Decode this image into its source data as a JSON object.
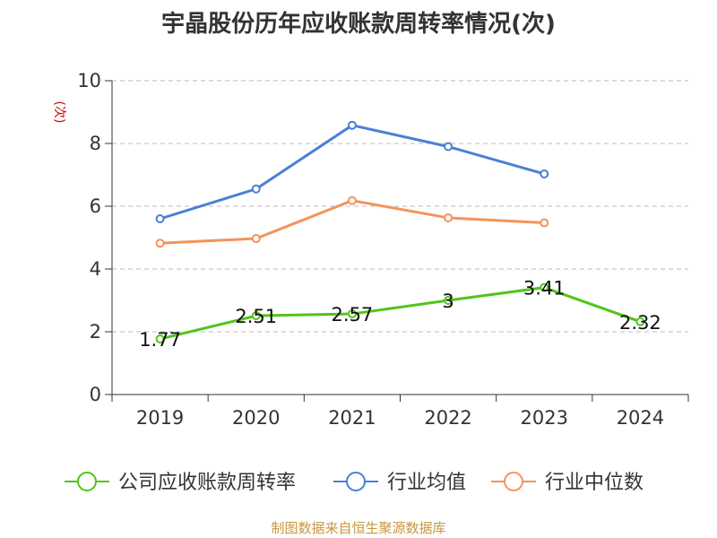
{
  "chart_data": {
    "type": "line",
    "title": "宇晶股份历年应收账款周转率情况(次)",
    "ylabel": "(次)",
    "xlabel": "",
    "categories": [
      "2019",
      "2020",
      "2021",
      "2022",
      "2023",
      "2024"
    ],
    "yticks": [
      "0",
      "2",
      "4",
      "6",
      "8",
      "10"
    ],
    "ylim": [
      0,
      10
    ],
    "grid": true,
    "legend_position": "bottom",
    "series": [
      {
        "name": "公司应收账款周转率",
        "color": "#52c41a",
        "values": [
          1.77,
          2.51,
          2.57,
          3,
          3.41,
          2.32
        ],
        "labels": [
          "1.77",
          "2.51",
          "2.57",
          "3",
          "3.41",
          "2.32"
        ],
        "show_labels": true
      },
      {
        "name": "行业均值",
        "color": "#4a7fd6",
        "values": [
          5.6,
          6.55,
          8.58,
          7.9,
          7.03,
          null
        ],
        "show_labels": false
      },
      {
        "name": "行业中位数",
        "color": "#f4935a",
        "values": [
          4.82,
          4.97,
          6.18,
          5.63,
          5.47,
          null
        ],
        "show_labels": false
      }
    ]
  },
  "footer": {
    "source": "制图数据来自恒生聚源数据库"
  }
}
